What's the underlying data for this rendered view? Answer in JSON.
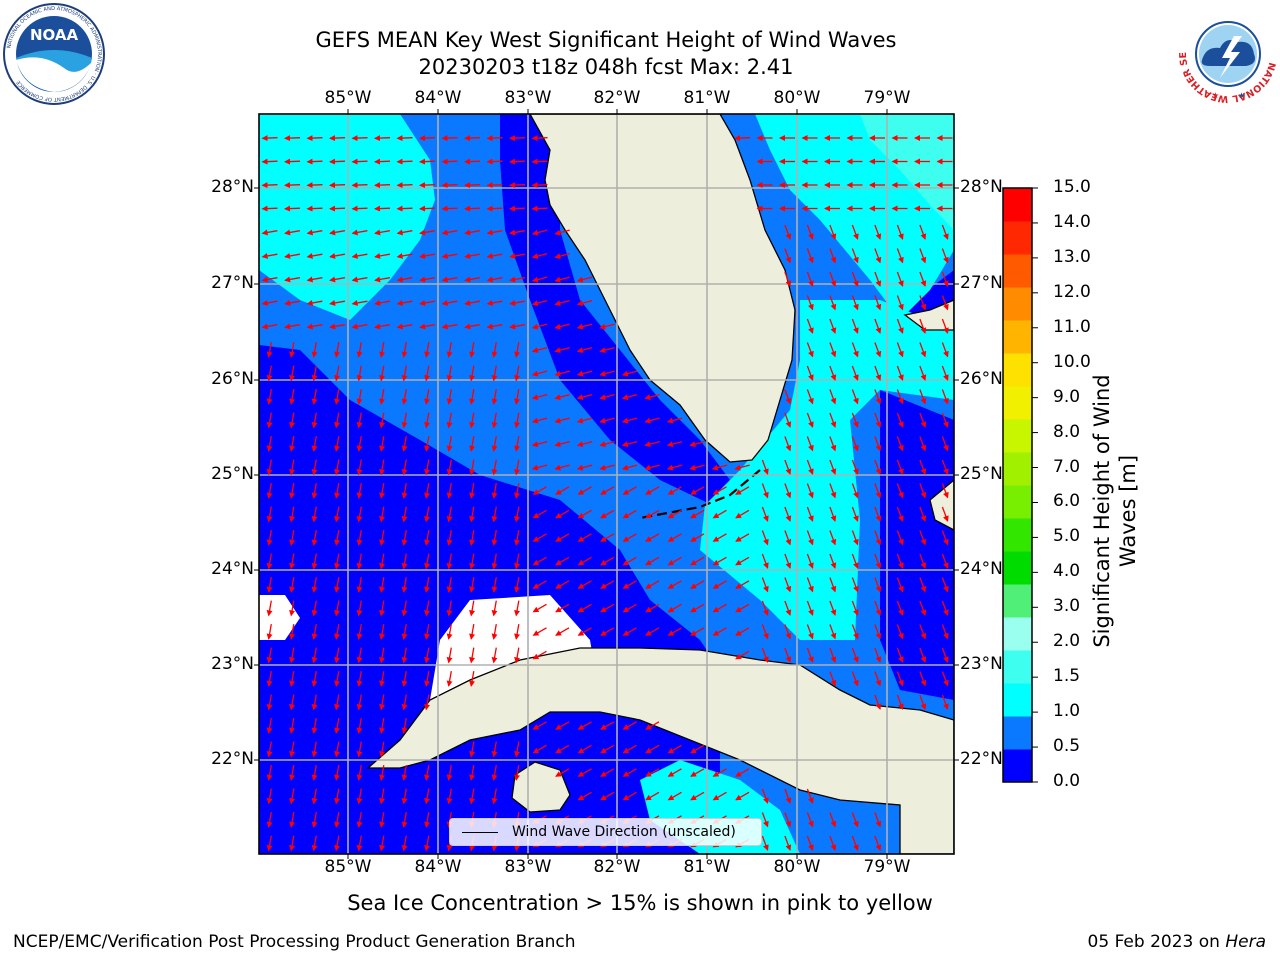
{
  "title": {
    "line1": "GEFS MEAN Key West Significant Height of Wind Waves",
    "line2": "20230203 t18z 048h fcst   Max: 2.41"
  },
  "logos": {
    "noaa": "NOAA",
    "noaa_ring": "NATIONAL OCEANIC AND ATMOSPHERIC ADMINISTRATION · U.S. DEPARTMENT OF COMMERCE",
    "nws_ring": "NATIONAL WEATHER SERVICE"
  },
  "axes": {
    "lon_labels": [
      "85°W",
      "84°W",
      "83°W",
      "82°W",
      "81°W",
      "80°W",
      "79°W"
    ],
    "lat_labels": [
      "28°N",
      "27°N",
      "26°N",
      "25°N",
      "24°N",
      "23°N",
      "22°N"
    ]
  },
  "colorbar": {
    "label": "Significant Height of Wind Waves [m]",
    "label_line1": "Significant Height of Wind",
    "label_line2": "Waves [m]",
    "ticks": [
      "15.0",
      "14.0",
      "13.0",
      "12.0",
      "11.0",
      "10.0",
      "9.0",
      "8.0",
      "7.0",
      "6.0",
      "5.0",
      "4.0",
      "3.0",
      "2.0",
      "1.5",
      "1.0",
      "0.5",
      "0.0"
    ],
    "colors_bottom_to_top": [
      "#0000ff",
      "#0a79ff",
      "#00ffff",
      "#3effef",
      "#9bfff0",
      "#50f078",
      "#00dc00",
      "#32e600",
      "#78ef00",
      "#a0f000",
      "#c8f500",
      "#f0f000",
      "#ffe100",
      "#ffb400",
      "#ff8c00",
      "#ff5a00",
      "#ff2800",
      "#ff0000"
    ]
  },
  "legend": {
    "label": "Wind Wave Direction (unscaled)"
  },
  "caption": "Sea Ice Concentration > 15% is shown in pink to yellow",
  "footer": {
    "left": "NCEP/EMC/Verification Post Processing Product Generation Branch",
    "right_prefix": "05 Feb 2023 on ",
    "right_machine": "Hera"
  },
  "map_colors": {
    "land": "#eeeedc",
    "h_0_05": "#0000ff",
    "h_05_10": "#0a79ff",
    "h_10_15": "#00ffff",
    "h_15_20": "#3effef",
    "grid": "#b0b0b0",
    "arrow": "#ff0000"
  }
}
